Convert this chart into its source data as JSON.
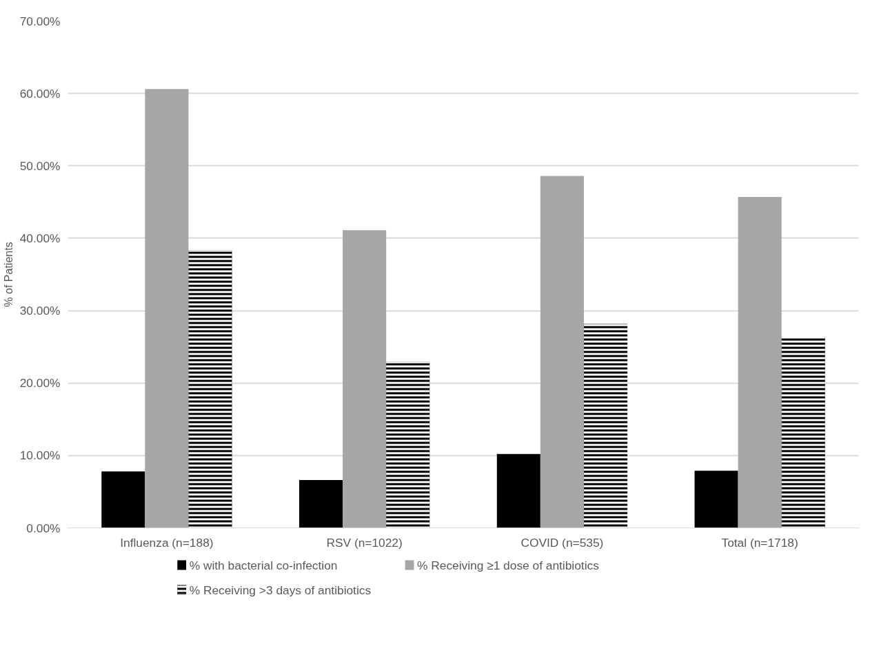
{
  "chart_data": {
    "type": "bar",
    "ylabel": "% of Patients",
    "categories": [
      "Influenza (n=188)",
      "RSV (n=1022)",
      "COVID (n=535)",
      "Total (n=1718)"
    ],
    "series": [
      {
        "name": "% with bacterial co-infection",
        "color": "#000000",
        "values": [
          7.8,
          6.6,
          10.2,
          7.9
        ]
      },
      {
        "name": "% Receiving ≥1 dose of antibiotics",
        "color": "#a6a6a6",
        "values": [
          60.6,
          41.1,
          48.6,
          45.7
        ]
      },
      {
        "name": "% Receiving >3 days of antibiotics",
        "color": "#000000",
        "values": [
          38.3,
          22.9,
          28.2,
          26.4
        ]
      }
    ],
    "ylim": [
      0,
      70
    ],
    "yticks": [
      {
        "value": 0,
        "label": "0.00%"
      },
      {
        "value": 10,
        "label": "10.00%"
      },
      {
        "value": 20,
        "label": "20.00%"
      },
      {
        "value": 30,
        "label": "30.00%"
      },
      {
        "value": 40,
        "label": "40.00%"
      },
      {
        "value": 50,
        "label": "50.00%"
      },
      {
        "value": 60,
        "label": "60.00%"
      },
      {
        "value": 70,
        "label": "70.00%"
      }
    ],
    "grid": "y",
    "legend": "bottom"
  }
}
